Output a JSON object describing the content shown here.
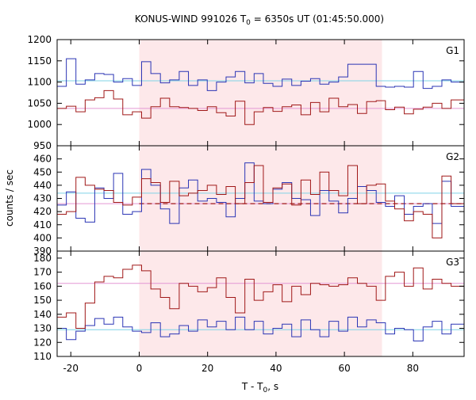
{
  "chart_data": {
    "type": "line",
    "title": "KONUS-WIND 991026 T",
    "title_sub": "0",
    "title_rest": " = 6350s UT (01:45:50.000)",
    "xlabel_main": "T - T",
    "xlabel_sub": "0",
    "xlabel_rest": ", s",
    "ylabel": "counts / sec",
    "xlim": [
      -24,
      95
    ],
    "xticks": [
      "-20",
      "0",
      "20",
      "40",
      "60",
      "80"
    ],
    "xtick_values": [
      -20,
      0,
      20,
      40,
      60,
      80
    ],
    "shaded_interval": [
      0,
      71
    ],
    "colors": {
      "blue": "#2b35b5",
      "red": "#a01818",
      "blue_bg": "#7fd3e6",
      "red_bg": "#e496d3",
      "shade": "#fde8ea"
    },
    "bin_edges": [
      -24,
      -21.3,
      -18.5,
      -15.8,
      -13,
      -10.3,
      -7.5,
      -4.8,
      -2,
      0.7,
      3.4,
      6.2,
      8.9,
      11.7,
      14.4,
      17.1,
      19.9,
      22.6,
      25.4,
      28.1,
      30.9,
      33.6,
      36.3,
      39.1,
      41.8,
      44.6,
      47.3,
      50.1,
      52.8,
      55.5,
      58.3,
      61,
      63.8,
      66.5,
      69.3,
      72,
      74.7,
      77.5,
      80.2,
      83,
      85.7,
      88.5,
      91.2,
      95
    ],
    "panels": [
      {
        "label": "G1",
        "ylim": [
          950,
          1200
        ],
        "yticks": [
          "950",
          "1000",
          "1050",
          "1100",
          "1150",
          "1200"
        ],
        "ytick_values": [
          950,
          1000,
          1050,
          1100,
          1150,
          1200
        ],
        "series_blue": [
          1090,
          1155,
          1095,
          1105,
          1120,
          1118,
          1100,
          1108,
          1092,
          1148,
          1120,
          1098,
          1105,
          1125,
          1092,
          1105,
          1080,
          1100,
          1112,
          1125,
          1098,
          1120,
          1097,
          1090,
          1107,
          1092,
          1102,
          1108,
          1095,
          1100,
          1112,
          1142,
          1142,
          1142,
          1090,
          1088,
          1090,
          1088,
          1125,
          1085,
          1090,
          1105,
          1100
        ],
        "series_red": [
          1038,
          1043,
          1030,
          1058,
          1063,
          1080,
          1060,
          1023,
          1030,
          1015,
          1042,
          1062,
          1042,
          1040,
          1038,
          1033,
          1042,
          1028,
          1020,
          1055,
          1000,
          1030,
          1040,
          1031,
          1042,
          1046,
          1023,
          1052,
          1030,
          1062,
          1042,
          1047,
          1026,
          1054,
          1056,
          1035,
          1041,
          1025,
          1036,
          1041,
          1050,
          1038,
          1058
        ],
        "bg_blue": 1103,
        "bg_red": 1038
      },
      {
        "label": "G2",
        "ylim": [
          390,
          470
        ],
        "yticks": [
          "390",
          "400",
          "410",
          "420",
          "430",
          "440",
          "450",
          "460"
        ],
        "ytick_values": [
          390,
          400,
          410,
          420,
          430,
          440,
          450,
          460
        ],
        "series_blue": [
          425,
          435,
          415,
          412,
          438,
          430,
          449,
          418,
          420,
          452,
          440,
          422,
          411,
          438,
          444,
          428,
          430,
          427,
          416,
          430,
          457,
          428,
          426,
          437,
          442,
          430,
          429,
          417,
          436,
          428,
          419,
          430,
          439,
          436,
          427,
          424,
          432,
          418,
          424,
          426,
          411,
          443,
          424
        ],
        "series_red": [
          418,
          420,
          446,
          440,
          437,
          436,
          427,
          425,
          431,
          445,
          442,
          427,
          443,
          432,
          434,
          436,
          440,
          433,
          439,
          426,
          442,
          455,
          427,
          438,
          441,
          425,
          444,
          433,
          450,
          436,
          432,
          455,
          426,
          440,
          441,
          428,
          422,
          413,
          420,
          418,
          400,
          447,
          426
        ],
        "bg_blue": 434,
        "bg_red": 426
      },
      {
        "label": "G3",
        "ylim": [
          110,
          185
        ],
        "yticks": [
          "110",
          "120",
          "130",
          "140",
          "150",
          "160",
          "170",
          "180"
        ],
        "ytick_values": [
          110,
          120,
          130,
          140,
          150,
          160,
          170,
          180
        ],
        "series_blue": [
          130,
          122,
          128,
          132,
          137,
          133,
          138,
          131,
          128,
          127,
          134,
          124,
          126,
          132,
          128,
          136,
          131,
          135,
          129,
          138,
          129,
          135,
          126,
          130,
          133,
          124,
          136,
          129,
          124,
          135,
          128,
          138,
          131,
          136,
          134,
          126,
          130,
          129,
          121,
          131,
          135,
          126,
          133
        ],
        "series_red": [
          138,
          141,
          130,
          148,
          163,
          167,
          166,
          172,
          175,
          171,
          158,
          152,
          144,
          162,
          160,
          156,
          159,
          166,
          152,
          141,
          165,
          150,
          156,
          161,
          149,
          160,
          154,
          162,
          161,
          160,
          161,
          166,
          162,
          160,
          150,
          167,
          170,
          160,
          173,
          158,
          165,
          162,
          160
        ],
        "bg_blue": 129,
        "bg_red": 162
      }
    ]
  }
}
